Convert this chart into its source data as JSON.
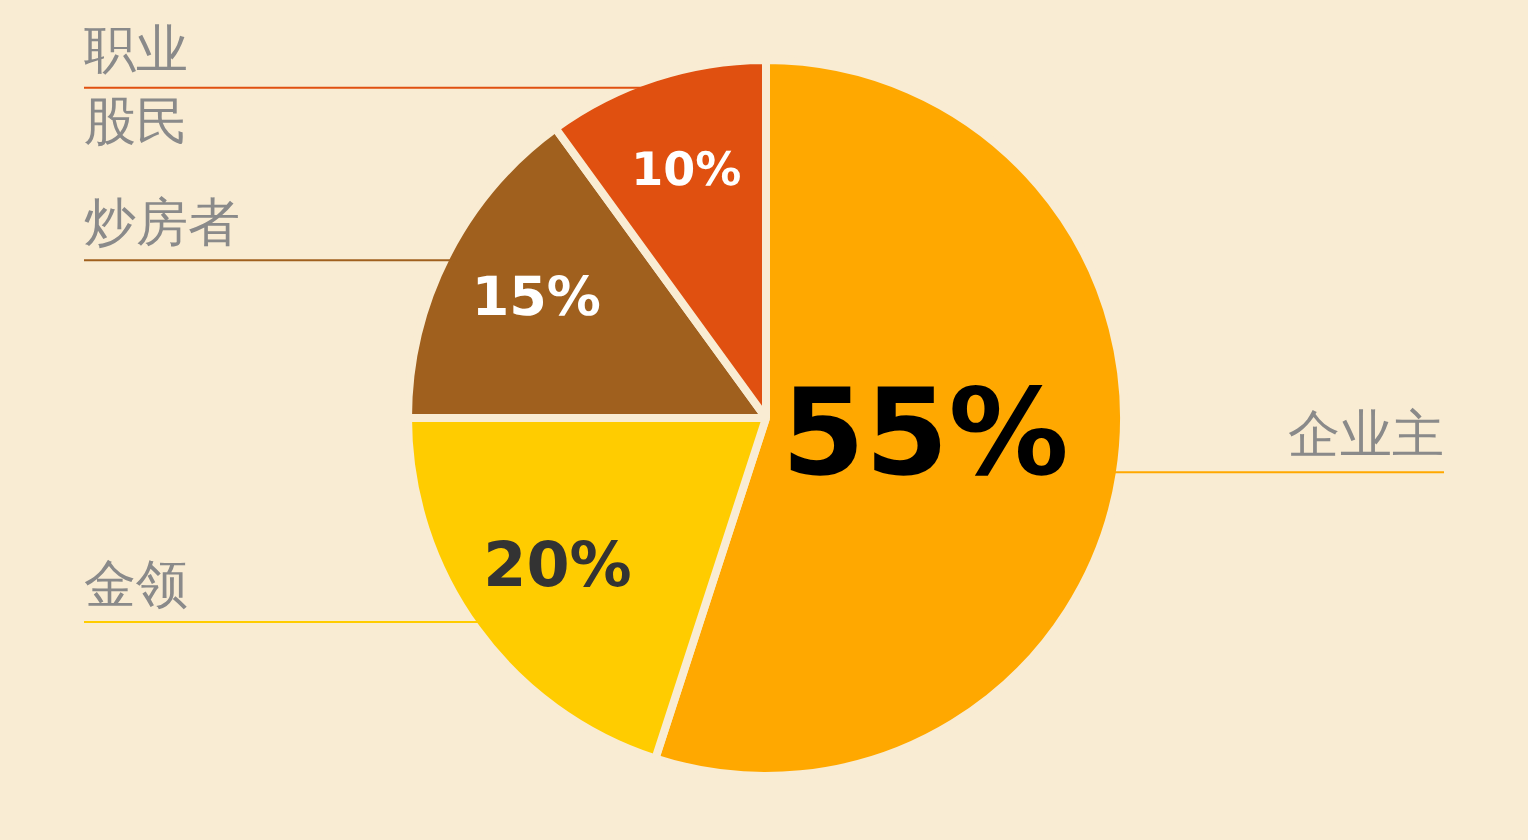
{
  "chart_data": {
    "type": "pie",
    "categories": [
      "企业主",
      "金领",
      "炒房者",
      "职业股民"
    ],
    "values": [
      55,
      20,
      15,
      10
    ],
    "colors": [
      "#ffa800",
      "#ffcc00",
      "#a0601e",
      "#e05010"
    ],
    "value_labels": [
      "55%",
      "20%",
      "15%",
      "10%"
    ],
    "legend": false
  }
}
